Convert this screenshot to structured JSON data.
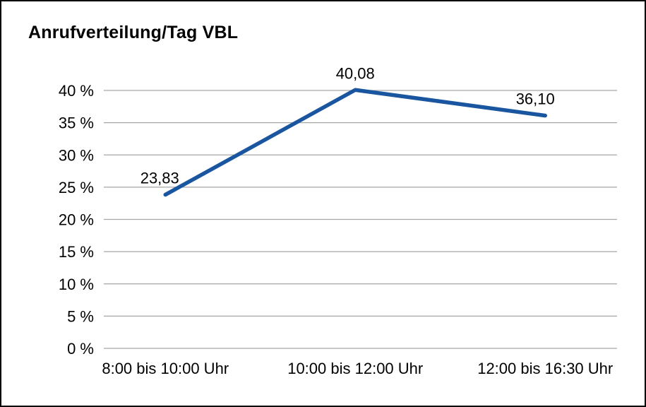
{
  "page": {
    "title": "Anrufverteilung/Tag VBL"
  },
  "chart_data": {
    "type": "line",
    "title": "Anrufverteilung/Tag VBL",
    "categories": [
      "8:00 bis 10:00 Uhr",
      "10:00 bis 12:00 Uhr",
      "12:00 bis 16:30 Uhr"
    ],
    "series": [
      {
        "name": "Anrufverteilung/Tag VBL",
        "values": [
          23.83,
          40.08,
          36.1
        ],
        "point_labels": [
          "23,83",
          "40,08",
          "36,10"
        ]
      }
    ],
    "xlabel": "",
    "ylabel": "",
    "ylim": [
      0,
      40
    ],
    "ytick_step": 5,
    "ytick_suffix": " %",
    "grid": true,
    "legend_position": "none",
    "line_color": "#1a56a0",
    "grid_color": "#a6a6a6",
    "text_color": "#000000",
    "background_color": "#ffffff"
  }
}
